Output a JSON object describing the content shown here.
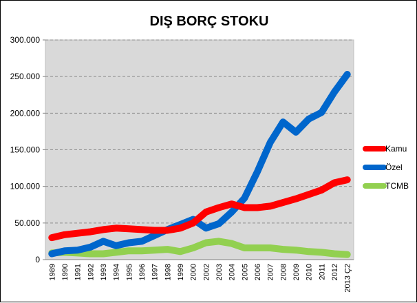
{
  "chart_data": {
    "type": "line",
    "title": "DIŞ BORÇ STOKU",
    "xlabel": "",
    "ylabel": "",
    "ylim": [
      0,
      300000
    ],
    "yticks": [
      0,
      50000,
      100000,
      150000,
      200000,
      250000,
      300000
    ],
    "ytick_labels": [
      "0",
      "50.000",
      "100.000",
      "150.000",
      "200.000",
      "250.000",
      "300.000"
    ],
    "grid": true,
    "legend_position": "right",
    "plot_background": "#d9d9d9",
    "categories": [
      "1989",
      "1990",
      "1991",
      "1992",
      "1993",
      "1994",
      "1995",
      "1996",
      "1997",
      "1998",
      "1999",
      "2000",
      "2002",
      "2003",
      "2004",
      "2005",
      "2006",
      "2007",
      "2008",
      "2009",
      "2010",
      "2011",
      "2012",
      "2013 Ç2"
    ],
    "series": [
      {
        "name": "Kamu",
        "color": "#ff0000",
        "values": [
          30000,
          34000,
          36000,
          38000,
          41000,
          43000,
          42000,
          41000,
          40000,
          40000,
          43000,
          50000,
          65000,
          71000,
          76000,
          71000,
          71000,
          73000,
          78000,
          83000,
          89000,
          95000,
          105000,
          109000
        ]
      },
      {
        "name": "Özel",
        "color": "#0066cc",
        "values": [
          8000,
          12000,
          13000,
          17000,
          25000,
          19000,
          23000,
          25000,
          33000,
          41000,
          48000,
          55000,
          43000,
          49000,
          65000,
          84000,
          120000,
          160000,
          188000,
          174000,
          192000,
          201000,
          229000,
          253000
        ]
      },
      {
        "name": "TCMB",
        "color": "#92d050",
        "values": [
          9000,
          10000,
          9000,
          8000,
          8000,
          10000,
          12000,
          12000,
          13000,
          14000,
          11000,
          16000,
          23000,
          25000,
          22000,
          16000,
          16000,
          16000,
          14000,
          13000,
          11000,
          10000,
          8000,
          7000
        ]
      }
    ]
  }
}
